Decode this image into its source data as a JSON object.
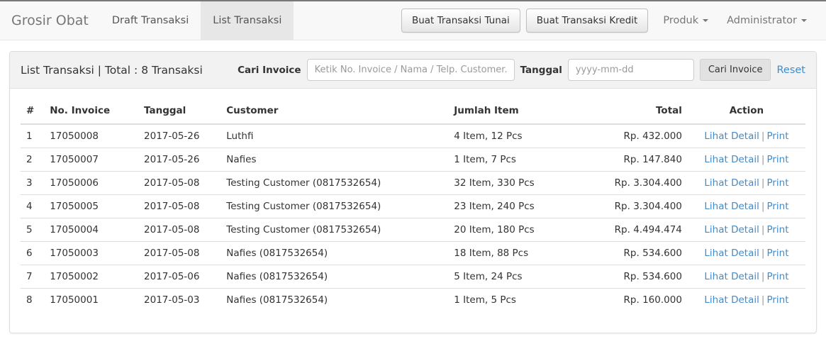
{
  "navbar": {
    "brand": "Grosir Obat",
    "tabs": [
      {
        "label": "Draft Transaksi",
        "active": false
      },
      {
        "label": "List Transaksi",
        "active": true
      }
    ],
    "buttons": {
      "tunai": "Buat Transaksi Tunai",
      "kredit": "Buat Transaksi Kredit"
    },
    "dropdowns": {
      "produk": "Produk",
      "user": "Administrator"
    }
  },
  "panel": {
    "title": "List Transaksi | Total : 8 Transaksi",
    "filter": {
      "search_label": "Cari Invoice",
      "search_placeholder": "Ketik No. Invoice / Nama / Telp. Customer..",
      "search_value": "",
      "date_label": "Tanggal",
      "date_placeholder": "yyyy-mm-dd",
      "date_value": "",
      "submit_label": "Cari Invoice",
      "reset_label": "Reset"
    }
  },
  "table": {
    "headers": [
      "#",
      "No. Invoice",
      "Tanggal",
      "Customer",
      "Jumlah Item",
      "Total",
      "Action"
    ],
    "action_labels": {
      "detail": "Lihat Detail",
      "separator": "|",
      "print": "Print"
    },
    "rows": [
      {
        "no": "1",
        "invoice": "17050008",
        "date": "2017-05-26",
        "customer": "Luthfi",
        "items": "4 Item, 12 Pcs",
        "total": "Rp. 432.000"
      },
      {
        "no": "2",
        "invoice": "17050007",
        "date": "2017-05-26",
        "customer": "Nafies",
        "items": "1 Item, 7 Pcs",
        "total": "Rp. 147.840"
      },
      {
        "no": "3",
        "invoice": "17050006",
        "date": "2017-05-08",
        "customer": "Testing Customer (0817532654)",
        "items": "32 Item, 330 Pcs",
        "total": "Rp. 3.304.400"
      },
      {
        "no": "4",
        "invoice": "17050005",
        "date": "2017-05-08",
        "customer": "Testing Customer (0817532654)",
        "items": "23 Item, 240 Pcs",
        "total": "Rp. 3.304.400"
      },
      {
        "no": "5",
        "invoice": "17050004",
        "date": "2017-05-08",
        "customer": "Testing Customer (0817532654)",
        "items": "20 Item, 180 Pcs",
        "total": "Rp. 4.494.474"
      },
      {
        "no": "6",
        "invoice": "17050003",
        "date": "2017-05-08",
        "customer": "Nafies (0817532654)",
        "items": "18 Item, 88 Pcs",
        "total": "Rp. 534.600"
      },
      {
        "no": "7",
        "invoice": "17050002",
        "date": "2017-05-06",
        "customer": "Nafies (0817532654)",
        "items": "5 Item, 24 Pcs",
        "total": "Rp. 534.600"
      },
      {
        "no": "8",
        "invoice": "17050001",
        "date": "2017-05-03",
        "customer": "Nafies (0817532654)",
        "items": "1 Item, 5 Pcs",
        "total": "Rp. 160.000"
      }
    ]
  },
  "colors": {
    "link_blue": "#428bca",
    "navbar_bg": "#f8f8f8",
    "active_tab_bg": "#e7e7e7",
    "panel_heading_bg": "#f2f2f2",
    "border": "#dddddd"
  }
}
